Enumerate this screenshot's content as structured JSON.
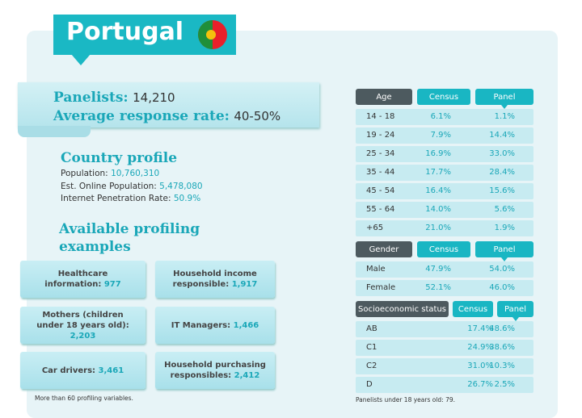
{
  "header": {
    "title": "Portugal"
  },
  "panelists": {
    "label": "Panelists:",
    "value": "14,210",
    "rate_label": "Average response rate:",
    "rate_value": "40-50%"
  },
  "country_profile": {
    "title": "Country profile",
    "items": [
      {
        "label": "Population:",
        "value": "10,760,310"
      },
      {
        "label": "Est. Online Population:",
        "value": "5,478,080"
      },
      {
        "label": "Internet Penetration Rate:",
        "value": "50.9%"
      }
    ]
  },
  "profiling": {
    "title": "Available profiling examples",
    "items": [
      {
        "label": "Healthcare information:",
        "value": "977"
      },
      {
        "label": "Household income responsible:",
        "value": "1,917"
      },
      {
        "label": "Mothers (children under 18 years old):",
        "value": "2,203"
      },
      {
        "label": "IT Managers:",
        "value": "1,466"
      },
      {
        "label": "Car drivers:",
        "value": "3,461"
      },
      {
        "label": "Household purchasing responsibles:",
        "value": "2,412"
      }
    ],
    "footnote": "More than 60 profiling variables."
  },
  "tables": [
    {
      "headers": [
        "Age",
        "Census",
        "Panel"
      ],
      "rows": [
        [
          "14 - 18",
          "6.1%",
          "1.1%"
        ],
        [
          "19 - 24",
          "7.9%",
          "14.4%"
        ],
        [
          "25 - 34",
          "16.9%",
          "33.0%"
        ],
        [
          "35 - 44",
          "17.7%",
          "28.4%"
        ],
        [
          "45 - 54",
          "16.4%",
          "15.6%"
        ],
        [
          "55 - 64",
          "14.0%",
          "5.6%"
        ],
        [
          "+65",
          "21.0%",
          "1.9%"
        ]
      ]
    },
    {
      "headers": [
        "Gender",
        "Census",
        "Panel"
      ],
      "rows": [
        [
          "Male",
          "47.9%",
          "54.0%"
        ],
        [
          "Female",
          "52.1%",
          "46.0%"
        ]
      ]
    },
    {
      "headers": [
        "Socioeconomic status",
        "Census",
        "Panel"
      ],
      "rows": [
        [
          "AB",
          "17.4%",
          "48.6%"
        ],
        [
          "C1",
          "24.9%",
          "38.6%"
        ],
        [
          "C2",
          "31.0%",
          "10.3%"
        ],
        [
          "D",
          "26.7%",
          "2.5%"
        ]
      ]
    }
  ],
  "tables_footnote": "Panelists under 18 years old: 79."
}
